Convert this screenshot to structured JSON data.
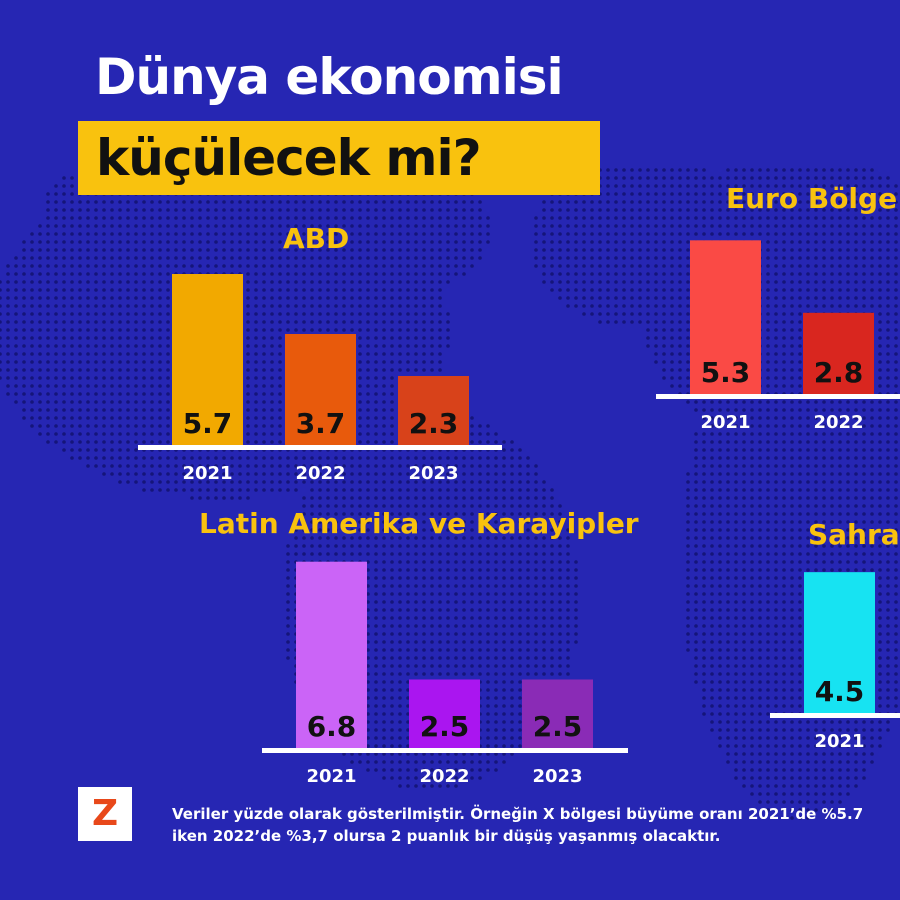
{
  "title": {
    "line1": "Dünya ekonomisi",
    "line2": "küçülecek mi?"
  },
  "colors": {
    "background": "#2626b3",
    "accent": "#f9c20e",
    "baseline": "#ffffff"
  },
  "logo": {
    "letter": "Z"
  },
  "footnote": "Veriler yüzde olarak gösterilmiştir. Örneğin X bölgesi büyüme oranı 2021’de %5.7 iken 2022’de %3,7 olursa 2 puanlık bir düşüş yaşanmış olacaktır.",
  "chart_data": [
    {
      "type": "bar",
      "title": "ABD",
      "categories": [
        "2021",
        "2022",
        "2023"
      ],
      "values": [
        5.7,
        3.7,
        2.3
      ],
      "value_labels": [
        "5.7",
        "3.7",
        "2.3"
      ],
      "colors": [
        "#f2a900",
        "#e85a0c",
        "#d8421a"
      ]
    },
    {
      "type": "bar",
      "title": "Euro Bölge",
      "categories": [
        "2021",
        "2022"
      ],
      "values": [
        5.3,
        2.8
      ],
      "value_labels": [
        "5.3",
        "2.8"
      ],
      "colors": [
        "#fa4a45",
        "#d9261f"
      ]
    },
    {
      "type": "bar",
      "title": "Latin Amerika ve Karayipler",
      "categories": [
        "2021",
        "2022",
        "2023"
      ],
      "values": [
        6.8,
        2.5,
        2.5
      ],
      "value_labels": [
        "6.8",
        "2.5",
        "2.5"
      ],
      "colors": [
        "#cb64f7",
        "#aa15f0",
        "#8a2bb6"
      ]
    },
    {
      "type": "bar",
      "title": "Sahra",
      "categories": [
        "2021"
      ],
      "values": [
        4.5
      ],
      "value_labels": [
        "4.5"
      ],
      "colors": [
        "#17e3f2"
      ]
    }
  ]
}
